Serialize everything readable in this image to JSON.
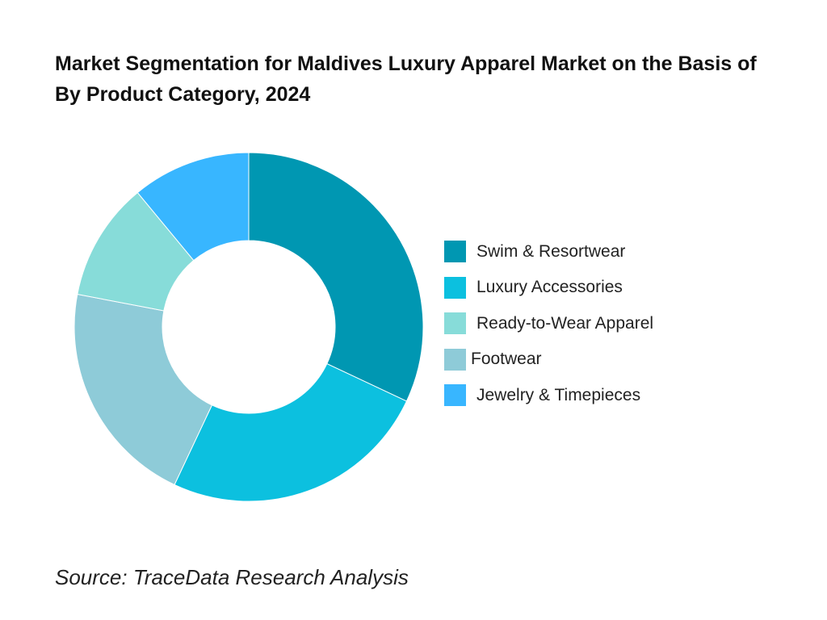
{
  "title": "Market Segmentation for Maldives Luxury Apparel Market on the Basis of By Product Category, 2024",
  "source": "Source: TraceData Research Analysis",
  "chart_data": {
    "type": "pie",
    "donut": true,
    "legend_position": "right",
    "categories": [
      "Swim & Resortwear",
      "Luxury Accessories",
      "Ready-to-Wear Apparel",
      "Footwear",
      "Jewelry & Timepieces"
    ],
    "legend_order": [
      "Swim & Resortwear",
      "Luxury Accessories",
      "Ready-to-Wear Apparel",
      "Footwear",
      "Jewelry & Timepieces"
    ],
    "slice_order": [
      "Swim & Resortwear",
      "Luxury Accessories",
      "Footwear",
      "Ready-to-Wear Apparel",
      "Jewelry & Timepieces"
    ],
    "values": {
      "Swim & Resortwear": 32,
      "Luxury Accessories": 25,
      "Footwear": 21,
      "Ready-to-Wear Apparel": 11,
      "Jewelry & Timepieces": 11
    },
    "colors": {
      "Swim & Resortwear": "#0097B2",
      "Luxury Accessories": "#0CC0DF",
      "Ready-to-Wear Apparel": "#87DCD9",
      "Footwear": "#8ECBD8",
      "Jewelry & Timepieces": "#38B6FF"
    }
  }
}
